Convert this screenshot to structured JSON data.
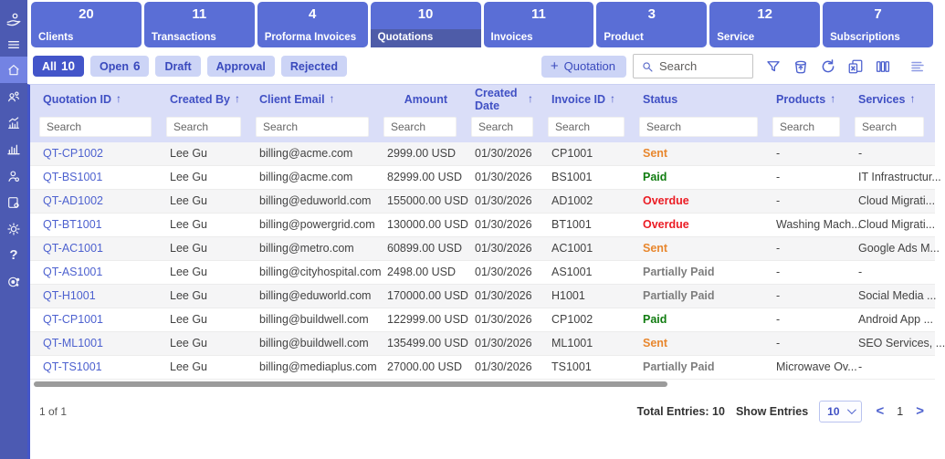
{
  "sidebar": {
    "icons": [
      "logo",
      "menu",
      "home",
      "contacts",
      "sales-chart",
      "analytics",
      "user-settings",
      "document-settings",
      "settings",
      "help",
      "integrations"
    ],
    "active": "home"
  },
  "cards": [
    {
      "label": "Clients",
      "count": "20",
      "selected": false
    },
    {
      "label": "Transactions",
      "count": "11",
      "selected": false
    },
    {
      "label": "Proforma Invoices",
      "count": "4",
      "selected": false
    },
    {
      "label": "Quotations",
      "count": "10",
      "selected": true
    },
    {
      "label": "Invoices",
      "count": "11",
      "selected": false
    },
    {
      "label": "Product",
      "count": "3",
      "selected": false
    },
    {
      "label": "Service",
      "count": "12",
      "selected": false
    },
    {
      "label": "Subscriptions",
      "count": "7",
      "selected": false
    }
  ],
  "filters": [
    {
      "label": "All",
      "count": "10",
      "active": true
    },
    {
      "label": "Open",
      "count": "6",
      "active": false
    },
    {
      "label": "Draft",
      "count": "",
      "active": false
    },
    {
      "label": "Approval",
      "count": "",
      "active": false
    },
    {
      "label": "Rejected",
      "count": "",
      "active": false
    }
  ],
  "toolbar": {
    "add_icon": "+",
    "add_button": "Quotation",
    "search_placeholder": "Search",
    "icons": [
      "filter",
      "recycle-bin",
      "refresh",
      "excel-export",
      "column-chooser",
      "text-align"
    ]
  },
  "table": {
    "column_search_placeholder": "Search",
    "sort_arrow": "↑",
    "columns": [
      {
        "key": "quotation_id",
        "label": "Quotation ID",
        "sort": true,
        "align": "left"
      },
      {
        "key": "created_by",
        "label": "Created By",
        "sort": true,
        "align": "left"
      },
      {
        "key": "client_email",
        "label": "Client Email",
        "sort": true,
        "align": "left"
      },
      {
        "key": "amount",
        "label": "Amount",
        "sort": false,
        "align": "right"
      },
      {
        "key": "created_date",
        "label": "Created Date",
        "sort": true,
        "align": "left"
      },
      {
        "key": "invoice_id",
        "label": "Invoice ID",
        "sort": true,
        "align": "left"
      },
      {
        "key": "status",
        "label": "Status",
        "sort": false,
        "align": "left"
      },
      {
        "key": "products",
        "label": "Products",
        "sort": true,
        "align": "left"
      },
      {
        "key": "services",
        "label": "Services",
        "sort": true,
        "align": "left"
      }
    ],
    "rows": [
      {
        "quotation_id": "QT-CP1002",
        "created_by": "Lee Gu",
        "client_email": "billing@acme.com",
        "amount": "2999.00 USD",
        "created_date": "01/30/2026",
        "invoice_id": "CP1001",
        "status": "Sent",
        "products": "-",
        "services": "-"
      },
      {
        "quotation_id": "QT-BS1001",
        "created_by": "Lee Gu",
        "client_email": "billing@acme.com",
        "amount": "82999.00 USD",
        "created_date": "01/30/2026",
        "invoice_id": "BS1001",
        "status": "Paid",
        "products": "-",
        "services": "IT Infrastructur..."
      },
      {
        "quotation_id": "QT-AD1002",
        "created_by": "Lee Gu",
        "client_email": "billing@eduworld.com",
        "amount": "155000.00 USD",
        "created_date": "01/30/2026",
        "invoice_id": "AD1002",
        "status": "Overdue",
        "products": "-",
        "services": "Cloud Migrati..."
      },
      {
        "quotation_id": "QT-BT1001",
        "created_by": "Lee Gu",
        "client_email": "billing@powergrid.com",
        "amount": "130000.00 USD",
        "created_date": "01/30/2026",
        "invoice_id": "BT1001",
        "status": "Overdue",
        "products": "Washing Mach...",
        "services": "Cloud Migrati..."
      },
      {
        "quotation_id": "QT-AC1001",
        "created_by": "Lee Gu",
        "client_email": "billing@metro.com",
        "amount": "60899.00 USD",
        "created_date": "01/30/2026",
        "invoice_id": "AC1001",
        "status": "Sent",
        "products": "-",
        "services": "Google Ads M..."
      },
      {
        "quotation_id": "QT-AS1001",
        "created_by": "Lee Gu",
        "client_email": "billing@cityhospital.com",
        "amount": "2498.00 USD",
        "created_date": "01/30/2026",
        "invoice_id": "AS1001",
        "status": "Partially Paid",
        "products": "-",
        "services": "-"
      },
      {
        "quotation_id": "QT-H1001",
        "created_by": "Lee Gu",
        "client_email": "billing@eduworld.com",
        "amount": "170000.00 USD",
        "created_date": "01/30/2026",
        "invoice_id": "H1001",
        "status": "Partially Paid",
        "products": "-",
        "services": "Social Media ..."
      },
      {
        "quotation_id": "QT-CP1001",
        "created_by": "Lee Gu",
        "client_email": "billing@buildwell.com",
        "amount": "122999.00 USD",
        "created_date": "01/30/2026",
        "invoice_id": "CP1002",
        "status": "Paid",
        "products": "-",
        "services": "Android App ..."
      },
      {
        "quotation_id": "QT-ML1001",
        "created_by": "Lee Gu",
        "client_email": "billing@buildwell.com",
        "amount": "135499.00 USD",
        "created_date": "01/30/2026",
        "invoice_id": "ML1001",
        "status": "Sent",
        "products": "-",
        "services": "SEO Services, ..."
      },
      {
        "quotation_id": "QT-TS1001",
        "created_by": "Lee Gu",
        "client_email": "billing@mediaplus.com",
        "amount": "27000.00 USD",
        "created_date": "01/30/2026",
        "invoice_id": "TS1001",
        "status": "Partially Paid",
        "products": "Microwave Ov...",
        "services": "-"
      }
    ],
    "status_colors": {
      "Sent": "#E8872E",
      "Paid": "#107C10",
      "Overdue": "#EB1C24",
      "Partially Paid": "#7E7E7E"
    }
  },
  "footer": {
    "page_info": "1 of 1",
    "total_entries": "Total Entries: 10",
    "show_entries_label": "Show Entries",
    "page_size": "10",
    "current_page": "1",
    "prev": "<",
    "next": ">"
  },
  "colors": {
    "sidebar": "#4C5AB2",
    "sidebar_active": "#7383E3",
    "card": "#5A6ED6",
    "card_selected_strip": "#4E5CA8",
    "accent": "#4355C9",
    "pill_bg": "#CCD4F6",
    "pill_text": "#3A4ABD",
    "header_bg": "#DADEF8",
    "header_text": "#4050C4",
    "link": "#4D61CF"
  }
}
